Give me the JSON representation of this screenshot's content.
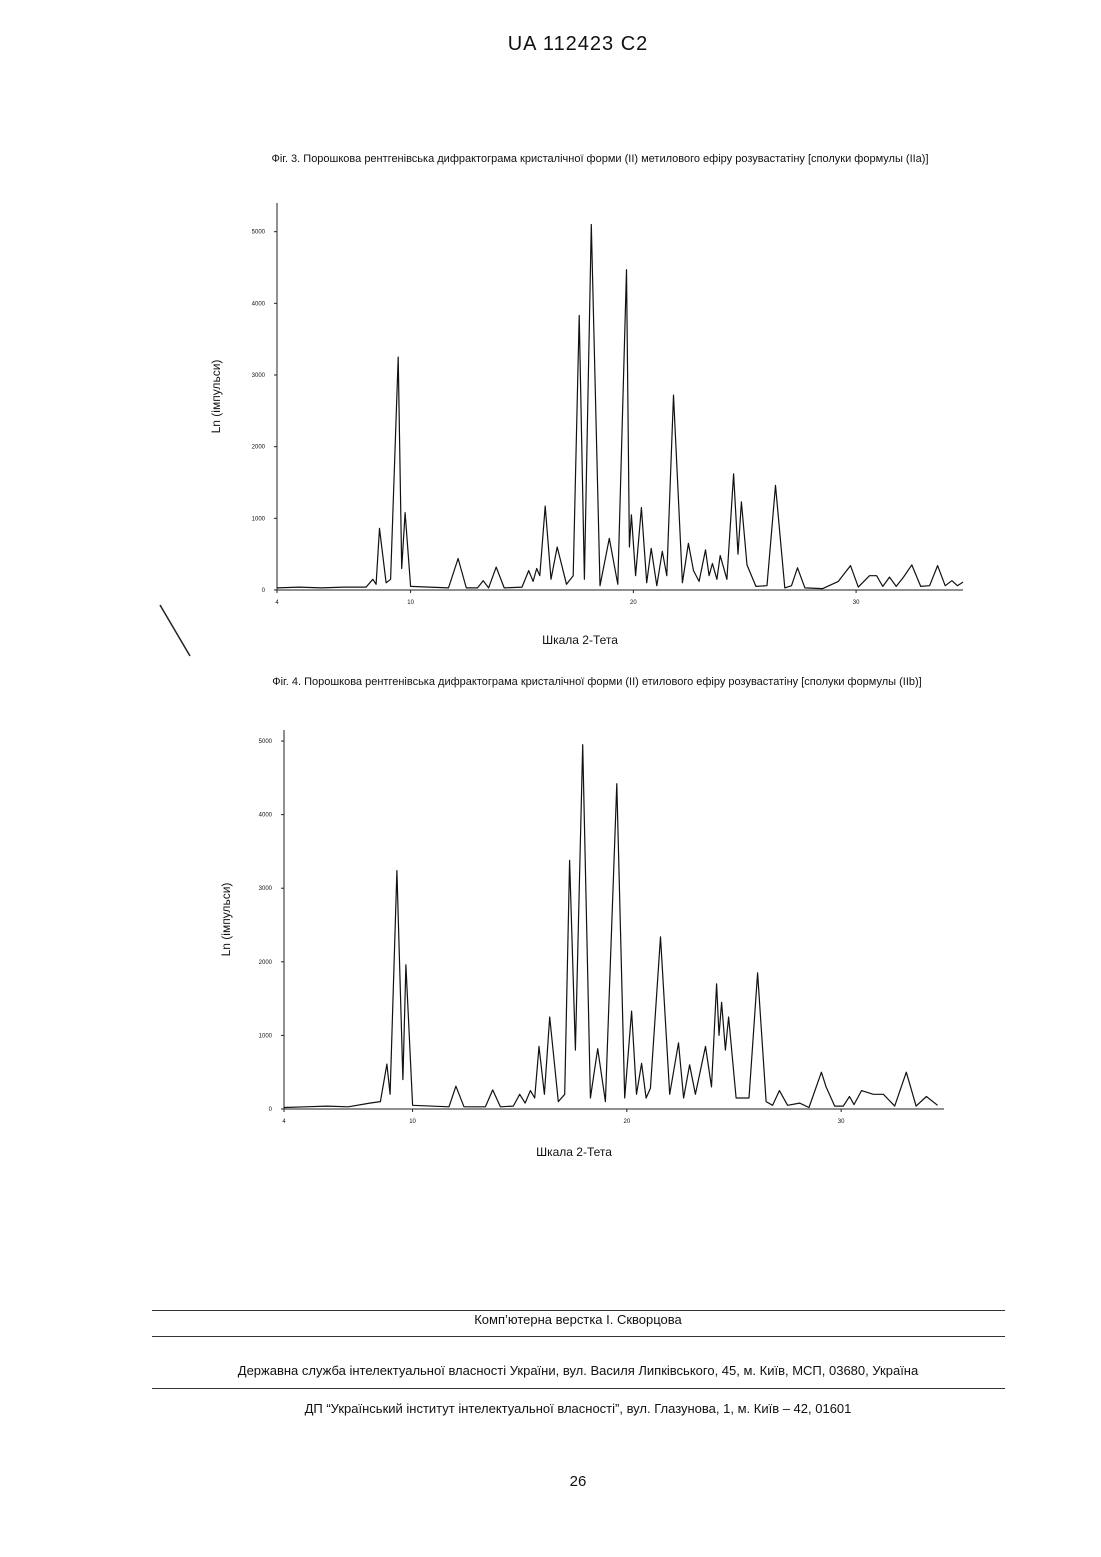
{
  "header": {
    "title": "UA 112423 C2"
  },
  "chart_data": [
    {
      "type": "line",
      "title": "Фіг. 3. Порошкова рентгенівська дифрактограма кристалічної форми (II) метилового ефіру розувастатіну [сполуки формулы (IIa)]",
      "x_label": "Шкала 2-Тета",
      "y_label": "Ln (імпульси)",
      "color": "#111111",
      "xlim": [
        4,
        34.8
      ],
      "xticks": [
        4,
        10,
        20,
        30
      ],
      "ylim": [
        0,
        5400
      ],
      "yticks": [
        0,
        1000,
        2000,
        3000,
        4000,
        5000
      ],
      "x": [
        4,
        5,
        6,
        7,
        8,
        8.3,
        8.45,
        8.6,
        8.9,
        9.1,
        9.44,
        9.6,
        9.75,
        10.0,
        11.7,
        12.13,
        12.5,
        13.0,
        13.26,
        13.5,
        13.84,
        14.2,
        15.0,
        15.3,
        15.5,
        15.66,
        15.8,
        16.04,
        16.3,
        16.58,
        17.0,
        17.3,
        17.57,
        17.8,
        18.11,
        18.5,
        18.92,
        19.3,
        19.69,
        19.82,
        19.91,
        20.1,
        20.36,
        20.6,
        20.8,
        21.05,
        21.3,
        21.5,
        21.8,
        22.2,
        22.47,
        22.7,
        22.95,
        23.24,
        23.4,
        23.55,
        23.75,
        23.9,
        24.2,
        24.5,
        24.7,
        24.85,
        25.1,
        25.5,
        26.0,
        26.38,
        26.8,
        27.1,
        27.37,
        27.7,
        28.5,
        29.2,
        29.75,
        30.1,
        30.6,
        30.92,
        31.2,
        31.5,
        31.8,
        32.13,
        32.5,
        32.9,
        33.3,
        33.66,
        34.0,
        34.3,
        34.55,
        34.8
      ],
      "values": [
        30,
        40,
        30,
        40,
        40,
        150,
        80,
        860,
        100,
        150,
        3250,
        300,
        1080,
        50,
        30,
        440,
        30,
        30,
        130,
        30,
        320,
        30,
        40,
        270,
        120,
        300,
        200,
        1170,
        150,
        600,
        80,
        200,
        3830,
        150,
        5100,
        60,
        720,
        80,
        4470,
        600,
        1050,
        200,
        1150,
        100,
        580,
        60,
        540,
        200,
        2720,
        100,
        650,
        270,
        120,
        560,
        200,
        370,
        150,
        480,
        150,
        1620,
        500,
        1230,
        350,
        50,
        60,
        1460,
        30,
        60,
        310,
        30,
        20,
        120,
        340,
        40,
        200,
        200,
        50,
        180,
        50,
        180,
        350,
        50,
        60,
        340,
        60,
        130,
        60,
        110
      ]
    },
    {
      "type": "line",
      "title": "Фіг. 4. Порошкова рентгенівська дифрактограма кристалічної форми (II) етилового ефіру розувастатіну [сполуки формулы (IIb)]",
      "x_label": "Шкала 2-Тета",
      "y_label": "Ln (імпульси)",
      "color": "#111111",
      "xlim": [
        4,
        34.8
      ],
      "xticks": [
        4,
        10,
        20,
        30
      ],
      "ylim": [
        0,
        5150
      ],
      "yticks": [
        0,
        1000,
        2000,
        3000,
        4000,
        5000
      ],
      "x": [
        4,
        5,
        6,
        7,
        8,
        8.5,
        8.8,
        8.95,
        9.27,
        9.55,
        9.69,
        10.0,
        11.7,
        12.02,
        12.4,
        13.4,
        13.74,
        14.1,
        14.7,
        15.0,
        15.25,
        15.5,
        15.7,
        15.9,
        16.15,
        16.4,
        16.8,
        17.1,
        17.33,
        17.6,
        17.94,
        18.3,
        18.64,
        19.0,
        19.53,
        19.9,
        20.22,
        20.45,
        20.69,
        20.9,
        21.1,
        21.57,
        22.0,
        22.41,
        22.65,
        22.93,
        23.2,
        23.67,
        23.95,
        24.19,
        24.3,
        24.42,
        24.6,
        24.75,
        25.1,
        25.7,
        26.1,
        26.5,
        26.8,
        27.12,
        27.5,
        28.06,
        28.5,
        29.08,
        29.3,
        29.7,
        30.1,
        30.39,
        30.6,
        30.95,
        31.5,
        31.97,
        32.5,
        33.04,
        33.5,
        33.98,
        34.5
      ],
      "values": [
        20,
        30,
        40,
        30,
        80,
        100,
        610,
        200,
        3240,
        400,
        1960,
        50,
        30,
        310,
        30,
        30,
        260,
        30,
        40,
        200,
        80,
        250,
        150,
        850,
        200,
        1250,
        100,
        200,
        3380,
        800,
        4950,
        150,
        820,
        100,
        4420,
        150,
        1330,
        200,
        620,
        150,
        280,
        2340,
        200,
        900,
        150,
        600,
        200,
        850,
        300,
        1700,
        1000,
        1450,
        800,
        1250,
        150,
        150,
        1850,
        100,
        50,
        250,
        50,
        80,
        20,
        500,
        300,
        40,
        40,
        170,
        60,
        250,
        200,
        200,
        40,
        500,
        40,
        170,
        50
      ]
    }
  ],
  "footer": {
    "credit": "Комп’ютерна верстка І. Скворцова",
    "office": "Державна служба інтелектуальної власності України, вул. Василя Липківського, 45, м. Київ, МСП, 03680, Україна",
    "institute": "ДП “Український інститут інтелектуальної власності”, вул. Глазунова, 1, м. Київ – 42, 01601",
    "page": "26"
  }
}
